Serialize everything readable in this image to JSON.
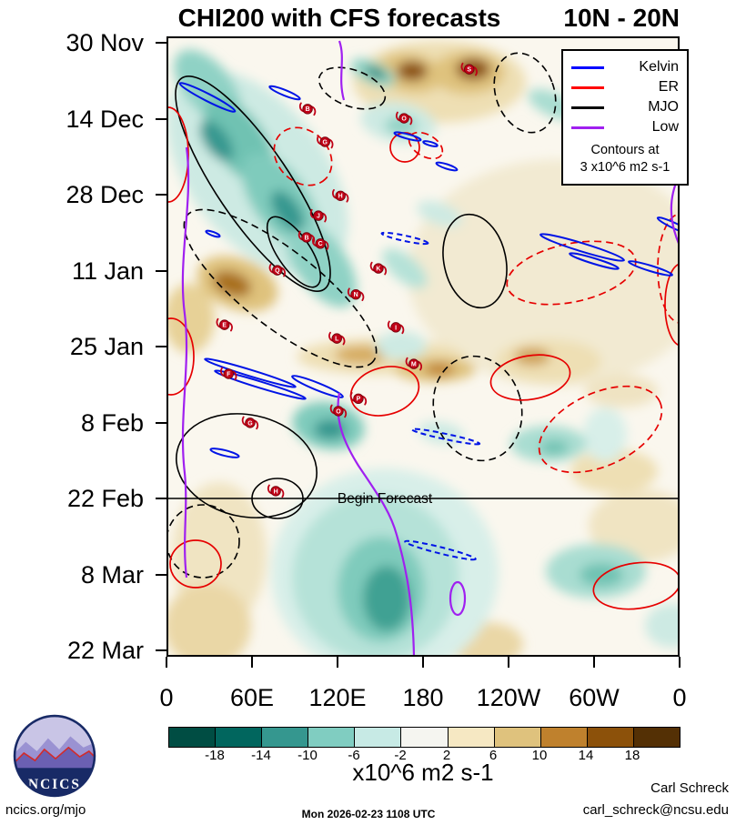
{
  "chart_data": {
    "type": "heatmap",
    "title": "CHI200 with CFS forecasts",
    "subtitle": "10N - 20N",
    "x_ticks": [
      "0",
      "60E",
      "120E",
      "180",
      "120W",
      "60W",
      "0"
    ],
    "y_ticks": [
      "30 Nov",
      "14 Dec",
      "28 Dec",
      "11 Jan",
      "25 Jan",
      "8 Feb",
      "22 Feb",
      "8 Mar",
      "22 Mar"
    ],
    "x_range_degrees": [
      0,
      360
    ],
    "grid": "off",
    "legend": {
      "position": "top-right",
      "entries": [
        {
          "label": "Kelvin",
          "color": "#0000ff"
        },
        {
          "label": "ER",
          "color": "#ff0000"
        },
        {
          "label": "MJO",
          "color": "#000000"
        },
        {
          "label": "Low",
          "color": "#a020f0"
        }
      ],
      "note_lines": [
        "Contours at",
        "3 x10^6 m2 s-1"
      ]
    },
    "colorbar": {
      "levels": [
        -18,
        -14,
        -10,
        -6,
        -2,
        2,
        6,
        10,
        14,
        18
      ],
      "colors": [
        "#004d43",
        "#01665e",
        "#35978f",
        "#80cdc1",
        "#c7eae5",
        "#f5f5f0",
        "#f6e8c3",
        "#dfc27d",
        "#bf812d",
        "#8c510a",
        "#543005"
      ],
      "label": "x10^6 m2 s-1"
    },
    "annotations": [
      {
        "text": "Begin Forecast",
        "at_y_tick": "22 Feb"
      }
    ],
    "storm_markers": [
      {
        "id": "B",
        "x_pct": 27.5,
        "y_pct": 11.7
      },
      {
        "id": "S",
        "x_pct": 59.0,
        "y_pct": 5.3
      },
      {
        "id": "O",
        "x_pct": 46.3,
        "y_pct": 13.2
      },
      {
        "id": "G",
        "x_pct": 30.9,
        "y_pct": 17.0
      },
      {
        "id": "H",
        "x_pct": 33.9,
        "y_pct": 25.7
      },
      {
        "id": "J",
        "x_pct": 29.6,
        "y_pct": 28.9
      },
      {
        "id": "B",
        "x_pct": 27.3,
        "y_pct": 32.4
      },
      {
        "id": "C",
        "x_pct": 30.0,
        "y_pct": 33.4
      },
      {
        "id": "Q",
        "x_pct": 21.6,
        "y_pct": 37.7
      },
      {
        "id": "K",
        "x_pct": 41.3,
        "y_pct": 37.4
      },
      {
        "id": "N",
        "x_pct": 36.9,
        "y_pct": 41.6
      },
      {
        "id": "E",
        "x_pct": 11.3,
        "y_pct": 46.5
      },
      {
        "id": "I",
        "x_pct": 44.7,
        "y_pct": 46.9
      },
      {
        "id": "L",
        "x_pct": 33.2,
        "y_pct": 48.7
      },
      {
        "id": "M",
        "x_pct": 48.2,
        "y_pct": 52.8
      },
      {
        "id": "F",
        "x_pct": 12.1,
        "y_pct": 54.4
      },
      {
        "id": "P",
        "x_pct": 37.4,
        "y_pct": 58.4
      },
      {
        "id": "O",
        "x_pct": 33.5,
        "y_pct": 60.4
      },
      {
        "id": "G",
        "x_pct": 16.3,
        "y_pct": 62.3
      },
      {
        "id": "H",
        "x_pct": 21.3,
        "y_pct": 73.3
      }
    ]
  },
  "footer": {
    "site": "ncics.org/mjo",
    "timestamp": "Mon 2026-02-23 1108 UTC",
    "credit_name": "Carl Schreck",
    "credit_email": "carl_schreck@ncsu.edu"
  },
  "logo": {
    "text": "NCICS"
  }
}
